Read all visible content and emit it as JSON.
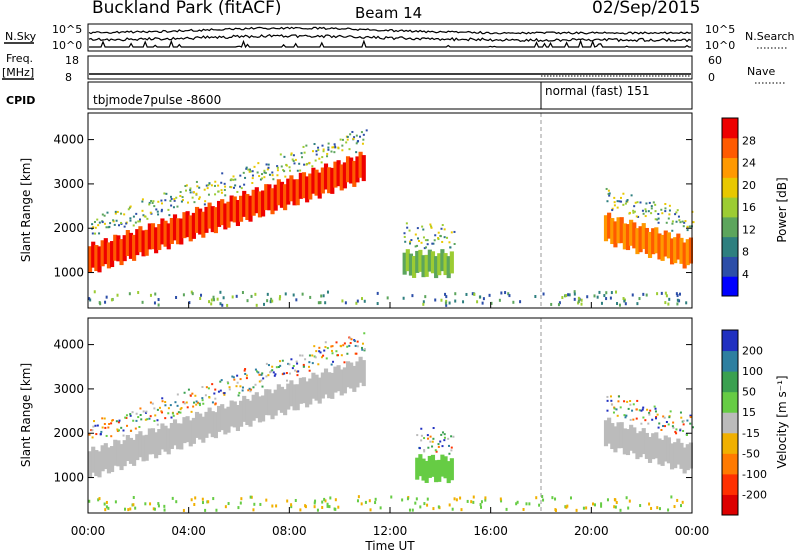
{
  "header": {
    "title": "Buckland Park (fitACF)",
    "beam": "Beam 14",
    "date": "02/Sep/2015"
  },
  "strip_labels": {
    "nsky": "N.Sky",
    "nsky_top": "10^5",
    "nsky_bottom": "10^0",
    "nsearch": "N.Search",
    "nsearch_top": "10^5",
    "nsearch_bottom": "10^0",
    "freq": "Freq.",
    "freq_unit": "[MHz]",
    "freq_top": "18",
    "freq_bottom": "8",
    "nave": "Nave",
    "nave_top": "60",
    "nave_bottom": "0",
    "cpid": "CPID",
    "cpid_mode_a": "tbjmode7pulse -8600",
    "cpid_mode_b": "normal (fast) 151"
  },
  "chart_data": [
    {
      "type": "heatmap",
      "name": "power",
      "ylabel": "Slant Range [km]",
      "yticks": [
        "1000",
        "2000",
        "3000",
        "4000"
      ],
      "ylim": [
        200,
        4600
      ],
      "xlim_hours": [
        0,
        24
      ],
      "colorbar": {
        "label": "Power [dB]",
        "ticks": [
          "4",
          "8",
          "12",
          "16",
          "20",
          "24",
          "28"
        ],
        "range": [
          0,
          32
        ],
        "colors": [
          "#0000ff",
          "#2c4ea8",
          "#2e7f7f",
          "#5ca55c",
          "#9ccc33",
          "#e8c800",
          "#ff9900",
          "#ff5a00",
          "#ee0000"
        ]
      },
      "features": [
        {
          "label": "main F-region band",
          "start_h": 0,
          "end_h": 11,
          "range_start_km": 1300,
          "range_end_km": 3400,
          "level": "24-32 dB"
        },
        {
          "label": "afternoon patch",
          "start_h": 12.5,
          "end_h": 14.5,
          "range_km": 1200,
          "level": "8-16 dB"
        },
        {
          "label": "evening band",
          "start_h": 20.5,
          "end_h": 24,
          "range_start_km": 2000,
          "range_end_km": 1400,
          "level": "16-28 dB"
        }
      ]
    },
    {
      "type": "heatmap",
      "name": "velocity",
      "ylabel": "Slant Range [km]",
      "yticks": [
        "1000",
        "2000",
        "3000",
        "4000"
      ],
      "ylim": [
        200,
        4600
      ],
      "xlim_hours": [
        0,
        24
      ],
      "xlabel": "Time UT",
      "xticks": [
        "00:00",
        "04:00",
        "08:00",
        "12:00",
        "16:00",
        "20:00",
        "00:00"
      ],
      "colorbar": {
        "label": "Velocity [m s⁻¹]",
        "ticks": [
          "200",
          "100",
          "50",
          "15",
          "-15",
          "-50",
          "-100",
          "-200"
        ],
        "colors": [
          "#2030c0",
          "#2e7fa0",
          "#3aa050",
          "#66cc44",
          "#bbbbbb",
          "#f0b000",
          "#ff7a00",
          "#ff3000",
          "#dd0000"
        ]
      },
      "features": [
        {
          "label": "grey low-velocity band",
          "start_h": 0,
          "end_h": 11,
          "range_start_km": 1300,
          "range_end_km": 3400,
          "level": "-15 to 15 m/s"
        },
        {
          "label": "green patch",
          "start_h": 13,
          "end_h": 14.5,
          "range_km": 1200,
          "level": "15-50 m/s"
        },
        {
          "label": "evening grey band",
          "start_h": 20.5,
          "end_h": 24,
          "range_start_km": 2000,
          "range_end_km": 1400,
          "level": "-15 to 15 m/s"
        }
      ]
    }
  ]
}
